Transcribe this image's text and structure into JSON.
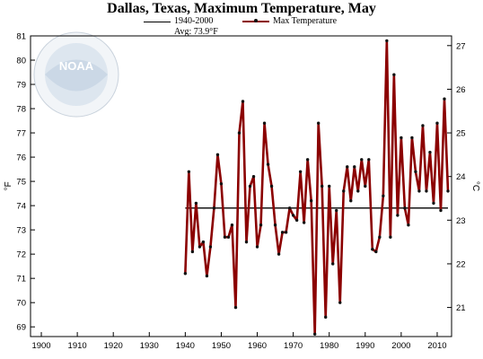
{
  "chart_data": {
    "type": "line",
    "title": "Dallas, Texas, Maximum Temperature, May",
    "ylabel_left": "°F",
    "ylabel_right": "°C",
    "x_ticks": [
      "1900",
      "1910",
      "1920",
      "1930",
      "1940",
      "1950",
      "1960",
      "1970",
      "1980",
      "1990",
      "2000",
      "2010"
    ],
    "y_ticks_left": [
      "69",
      "70",
      "71",
      "72",
      "73",
      "74",
      "75",
      "76",
      "77",
      "78",
      "79",
      "80",
      "81"
    ],
    "y_ticks_right": [
      "21",
      "22",
      "23",
      "24",
      "25",
      "26",
      "27"
    ],
    "xlim": [
      1897,
      2014
    ],
    "ylim": [
      68.6,
      81
    ],
    "colors": {
      "series": "#8b0000",
      "marker": "#111111",
      "average": "#000000"
    },
    "legend_avg": {
      "label": "1940-2000",
      "sub": "Avg: 73.9°F"
    },
    "legend_series": "Max Temperature",
    "average": {
      "value": 73.9,
      "from": 1940,
      "to": 2013
    },
    "series": [
      {
        "name": "Max Temperature",
        "x": [
          1940,
          1941,
          1942,
          1943,
          1944,
          1945,
          1946,
          1947,
          1948,
          1949,
          1950,
          1951,
          1952,
          1953,
          1954,
          1955,
          1956,
          1957,
          1958,
          1959,
          1960,
          1961,
          1962,
          1963,
          1964,
          1965,
          1966,
          1967,
          1968,
          1969,
          1970,
          1971,
          1972,
          1973,
          1974,
          1975,
          1976,
          1977,
          1978,
          1979,
          1980,
          1981,
          1982,
          1983,
          1984,
          1985,
          1986,
          1987,
          1988,
          1989,
          1990,
          1991,
          1992,
          1993,
          1994,
          1995,
          1996,
          1997,
          1998,
          1999,
          2000,
          2001,
          2002,
          2003,
          2004,
          2005,
          2006,
          2007,
          2008,
          2009,
          2010,
          2011,
          2012,
          2013
        ],
        "values": [
          71.2,
          75.4,
          72.1,
          74.1,
          72.3,
          72.5,
          71.1,
          72.3,
          73.9,
          76.1,
          74.9,
          72.7,
          72.7,
          73.2,
          69.8,
          77.0,
          78.3,
          72.5,
          74.8,
          75.2,
          72.3,
          73.2,
          77.4,
          75.7,
          74.8,
          73.2,
          72.0,
          72.9,
          72.9,
          73.9,
          73.6,
          73.4,
          75.4,
          73.3,
          75.9,
          74.2,
          68.7,
          77.4,
          74.8,
          69.4,
          74.8,
          71.6,
          73.8,
          70.0,
          74.6,
          75.6,
          74.2,
          75.6,
          74.6,
          75.9,
          74.8,
          75.9,
          72.2,
          72.1,
          72.7,
          74.4,
          80.8,
          72.7,
          79.4,
          73.6,
          76.8,
          73.9,
          73.2,
          76.8,
          75.4,
          74.6,
          77.3,
          74.6,
          76.2,
          74.1,
          77.4,
          73.8,
          78.4,
          74.6
        ]
      }
    ]
  }
}
